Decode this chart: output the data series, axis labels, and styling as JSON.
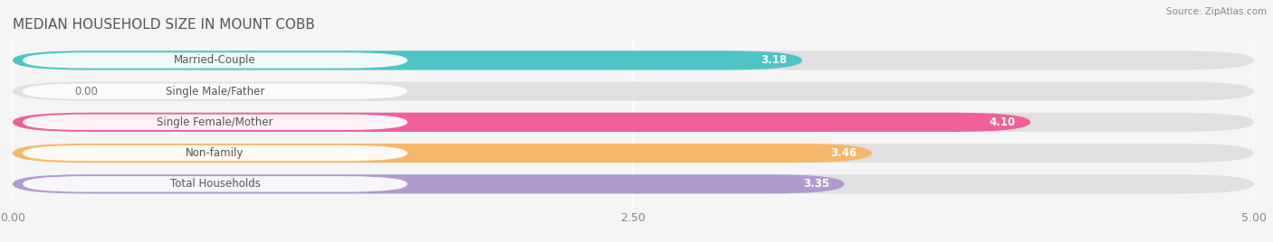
{
  "title": "MEDIAN HOUSEHOLD SIZE IN MOUNT COBB",
  "source": "Source: ZipAtlas.com",
  "categories": [
    "Married-Couple",
    "Single Male/Father",
    "Single Female/Mother",
    "Non-family",
    "Total Households"
  ],
  "values": [
    3.18,
    0.0,
    4.1,
    3.46,
    3.35
  ],
  "bar_colors": [
    "#4EC4C4",
    "#A8C0E0",
    "#F0609A",
    "#F5B86A",
    "#B09ACE"
  ],
  "bar_bg_color": "#E0E0E0",
  "xlim": [
    0,
    5.0
  ],
  "xticks": [
    0.0,
    2.5,
    5.0
  ],
  "xtick_labels": [
    "0.00",
    "2.50",
    "5.00"
  ],
  "title_color": "#555555",
  "background_color": "#F5F5F5",
  "bar_height": 0.62,
  "label_text_color": "#555555"
}
